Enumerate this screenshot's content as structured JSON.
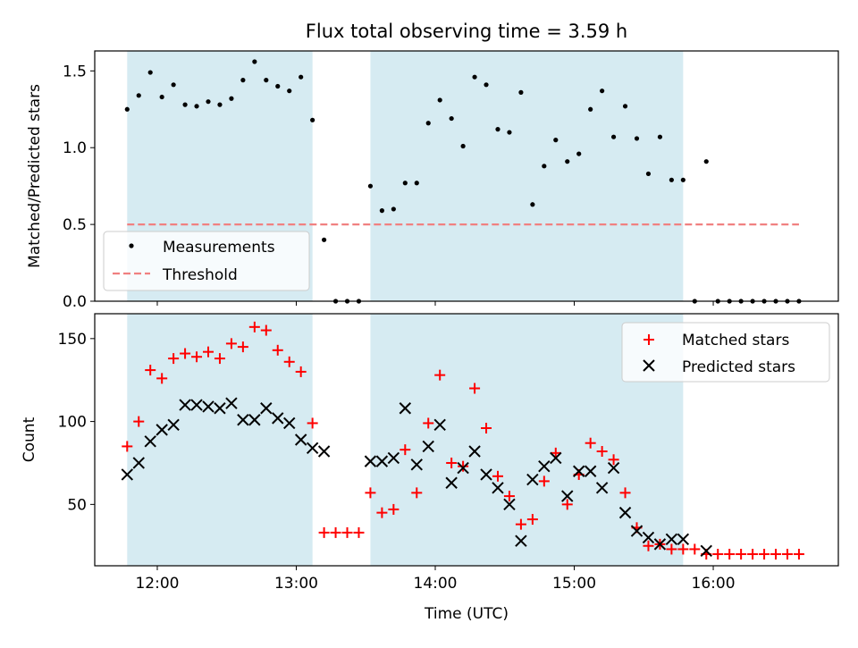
{
  "colors": {
    "shade": "#add8e6",
    "threshold": "#f08080",
    "matched": "#ff0000",
    "predicted": "#000000",
    "measurement": "#000000"
  },
  "chart_data": [
    {
      "type": "scatter",
      "title": "Flux total observing time = 3.59 h",
      "xlabel": "",
      "ylabel": "Matched/Predicted stars",
      "xlim": [
        "11:33",
        "16:54"
      ],
      "ylim": [
        0,
        1.63
      ],
      "yticks": [
        "0.0",
        "0.5",
        "1.0",
        "1.5"
      ],
      "legend_position": "lower-left",
      "shaded_intervals": [
        [
          "11:47",
          "13:07"
        ],
        [
          "13:32",
          "15:47"
        ]
      ],
      "series": [
        {
          "name": "Measurements",
          "style": "dot",
          "x": [
            "11:47",
            "11:52",
            "11:57",
            "12:02",
            "12:07",
            "12:12",
            "12:17",
            "12:22",
            "12:27",
            "12:32",
            "12:37",
            "12:42",
            "12:47",
            "12:52",
            "12:57",
            "13:02",
            "13:07",
            "13:12",
            "13:17",
            "13:22",
            "13:27",
            "13:32",
            "13:37",
            "13:42",
            "13:47",
            "13:52",
            "13:57",
            "14:02",
            "14:07",
            "14:12",
            "14:17",
            "14:22",
            "14:27",
            "14:32",
            "14:37",
            "14:42",
            "14:47",
            "14:52",
            "14:57",
            "15:02",
            "15:07",
            "15:12",
            "15:17",
            "15:22",
            "15:27",
            "15:32",
            "15:37",
            "15:42",
            "15:47",
            "15:52",
            "15:57",
            "16:02",
            "16:07",
            "16:12",
            "16:17",
            "16:22",
            "16:27",
            "16:32",
            "16:37"
          ],
          "y": [
            1.25,
            1.34,
            1.49,
            1.33,
            1.41,
            1.28,
            1.27,
            1.3,
            1.28,
            1.32,
            1.44,
            1.56,
            1.44,
            1.4,
            1.37,
            1.46,
            1.18,
            0.4,
            0,
            0,
            0,
            0.75,
            0.59,
            0.6,
            0.77,
            0.77,
            1.16,
            1.31,
            1.19,
            1.01,
            1.46,
            1.41,
            1.12,
            1.1,
            1.36,
            0.63,
            0.88,
            1.05,
            0.91,
            0.96,
            1.25,
            1.37,
            1.07,
            1.27,
            1.06,
            0.83,
            1.07,
            0.79,
            0.79,
            0,
            0.91,
            0,
            0,
            0,
            0,
            0,
            0,
            0,
            0
          ]
        },
        {
          "name": "Threshold",
          "style": "dashed",
          "x": [
            "11:47",
            "16:37"
          ],
          "y": [
            0.5,
            0.5
          ]
        }
      ]
    },
    {
      "type": "scatter",
      "title": "",
      "xlabel": "Time (UTC)",
      "ylabel": "Count",
      "xlim": [
        "11:33",
        "16:54"
      ],
      "ylim": [
        13,
        165
      ],
      "yticks": [
        "50",
        "100",
        "150"
      ],
      "xticks": [
        "12:00",
        "13:00",
        "14:00",
        "15:00",
        "16:00"
      ],
      "legend_position": "upper-right",
      "shaded_intervals": [
        [
          "11:47",
          "13:07"
        ],
        [
          "13:32",
          "15:47"
        ]
      ],
      "series": [
        {
          "name": "Matched stars",
          "style": "plus",
          "x": [
            "11:47",
            "11:52",
            "11:57",
            "12:02",
            "12:07",
            "12:12",
            "12:17",
            "12:22",
            "12:27",
            "12:32",
            "12:37",
            "12:42",
            "12:47",
            "12:52",
            "12:57",
            "13:02",
            "13:07",
            "13:12",
            "13:17",
            "13:22",
            "13:27",
            "13:32",
            "13:37",
            "13:42",
            "13:47",
            "13:52",
            "13:57",
            "14:02",
            "14:07",
            "14:12",
            "14:17",
            "14:22",
            "14:27",
            "14:32",
            "14:37",
            "14:42",
            "14:47",
            "14:52",
            "14:57",
            "15:02",
            "15:07",
            "15:12",
            "15:17",
            "15:22",
            "15:27",
            "15:32",
            "15:37",
            "15:42",
            "15:47",
            "15:52",
            "15:57",
            "16:02",
            "16:07",
            "16:12",
            "16:17",
            "16:22",
            "16:27",
            "16:32",
            "16:37"
          ],
          "y": [
            85,
            100,
            131,
            126,
            138,
            141,
            139,
            142,
            138,
            147,
            145,
            157,
            155,
            143,
            136,
            130,
            99,
            33,
            33,
            33,
            33,
            57,
            45,
            47,
            83,
            57,
            99,
            128,
            75,
            73,
            120,
            96,
            67,
            55,
            38,
            41,
            64,
            81,
            50,
            68,
            87,
            82,
            77,
            57,
            36,
            25,
            26,
            23,
            23,
            23,
            20,
            20,
            20,
            20,
            20,
            20,
            20,
            20,
            20
          ]
        },
        {
          "name": "Predicted stars",
          "style": "x",
          "x": [
            "11:47",
            "11:52",
            "11:57",
            "12:02",
            "12:07",
            "12:12",
            "12:17",
            "12:22",
            "12:27",
            "12:32",
            "12:37",
            "12:42",
            "12:47",
            "12:52",
            "12:57",
            "13:02",
            "13:07",
            "13:12",
            "13:32",
            "13:37",
            "13:42",
            "13:47",
            "13:52",
            "13:57",
            "14:02",
            "14:07",
            "14:12",
            "14:17",
            "14:22",
            "14:27",
            "14:32",
            "14:37",
            "14:42",
            "14:47",
            "14:52",
            "14:57",
            "15:02",
            "15:07",
            "15:12",
            "15:17",
            "15:22",
            "15:27",
            "15:32",
            "15:37",
            "15:42",
            "15:47",
            "15:57"
          ],
          "y": [
            68,
            75,
            88,
            95,
            98,
            110,
            110,
            109,
            108,
            111,
            101,
            101,
            108,
            102,
            99,
            89,
            84,
            82,
            76,
            76,
            78,
            108,
            74,
            85,
            98,
            63,
            72,
            82,
            68,
            60,
            50,
            28,
            65,
            73,
            78,
            55,
            70,
            70,
            60,
            72,
            45,
            34,
            30,
            26,
            29,
            29,
            22
          ]
        }
      ]
    }
  ]
}
